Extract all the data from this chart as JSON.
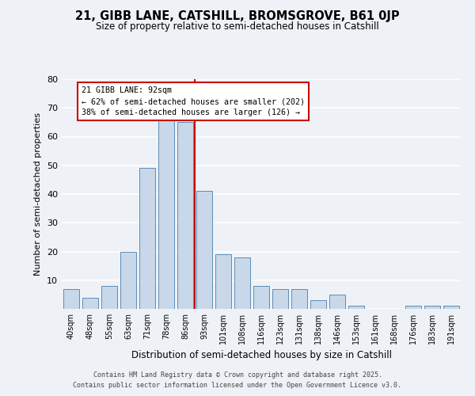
{
  "title1": "21, GIBB LANE, CATSHILL, BROMSGROVE, B61 0JP",
  "title2": "Size of property relative to semi-detached houses in Catshill",
  "xlabel": "Distribution of semi-detached houses by size in Catshill",
  "ylabel": "Number of semi-detached properties",
  "categories": [
    "40sqm",
    "48sqm",
    "55sqm",
    "63sqm",
    "71sqm",
    "78sqm",
    "86sqm",
    "93sqm",
    "101sqm",
    "108sqm",
    "116sqm",
    "123sqm",
    "131sqm",
    "138sqm",
    "146sqm",
    "153sqm",
    "161sqm",
    "168sqm",
    "176sqm",
    "183sqm",
    "191sqm"
  ],
  "values": [
    7,
    4,
    8,
    20,
    49,
    67,
    65,
    41,
    19,
    18,
    8,
    7,
    7,
    3,
    5,
    1,
    0,
    0,
    1,
    1,
    1
  ],
  "bar_color": "#c8d8e8",
  "bar_edge_color": "#5b8db8",
  "annotation_text": "21 GIBB LANE: 92sqm\n← 62% of semi-detached houses are smaller (202)\n38% of semi-detached houses are larger (126) →",
  "annotation_box_color": "#ffffff",
  "annotation_box_edge_color": "#cc0000",
  "vline_color": "#cc0000",
  "footer1": "Contains HM Land Registry data © Crown copyright and database right 2025.",
  "footer2": "Contains public sector information licensed under the Open Government Licence v3.0.",
  "bg_color": "#eef2f7",
  "plot_bg_color": "#eef2f7",
  "ylim": [
    0,
    80
  ],
  "yticks": [
    0,
    10,
    20,
    30,
    40,
    50,
    60,
    70,
    80
  ],
  "grid_color": "#ffffff",
  "vline_x_index": 6.5
}
